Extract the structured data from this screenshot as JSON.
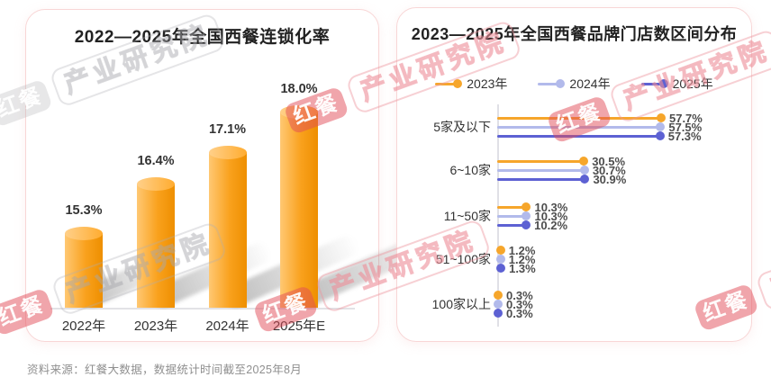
{
  "page": {
    "source_note": "资料来源：红餐大数据，数据统计时间截至2025年8月"
  },
  "watermark": {
    "brand": "红餐",
    "org": "产业研究院"
  },
  "chart_data": [
    {
      "type": "bar",
      "title": "2022—2025年全国西餐连锁化率",
      "categories": [
        "2022年",
        "2023年",
        "2024年",
        "2025年E"
      ],
      "values": [
        15.3,
        16.4,
        17.1,
        18.0
      ],
      "value_labels": [
        "15.3%",
        "16.4%",
        "17.1%",
        "18.0%"
      ],
      "unit": "%",
      "bar_color": "#F9A11D",
      "xlabel": "",
      "ylabel": "",
      "grid": false,
      "bar_style": "cylinder-3d"
    },
    {
      "type": "lollipop",
      "title": "2023—2025年全国西餐品牌门店数区间分布",
      "orientation": "horizontal",
      "categories": [
        "5家及以下",
        "6~10家",
        "11~50家",
        "51~100家",
        "100家以上"
      ],
      "series": [
        {
          "name": "2023年",
          "color": "#F6A62B",
          "values": [
            57.7,
            30.5,
            10.3,
            1.2,
            0.3
          ],
          "labels": [
            "57.7%",
            "30.5%",
            "10.3%",
            "1.2%",
            "0.3%"
          ]
        },
        {
          "name": "2024年",
          "color": "#B2BAEB",
          "values": [
            57.5,
            30.7,
            10.3,
            1.2,
            0.3
          ],
          "labels": [
            "57.5%",
            "30.7%",
            "10.3%",
            "1.2%",
            "0.3%"
          ]
        },
        {
          "name": "2025年",
          "color": "#5D61D3",
          "values": [
            57.3,
            30.9,
            10.2,
            1.3,
            0.3
          ],
          "labels": [
            "57.3%",
            "30.9%",
            "10.2%",
            "1.3%",
            "0.3%"
          ]
        }
      ],
      "unit": "%",
      "legend_position": "top",
      "xlim": [
        0,
        62
      ],
      "grid": false
    }
  ]
}
